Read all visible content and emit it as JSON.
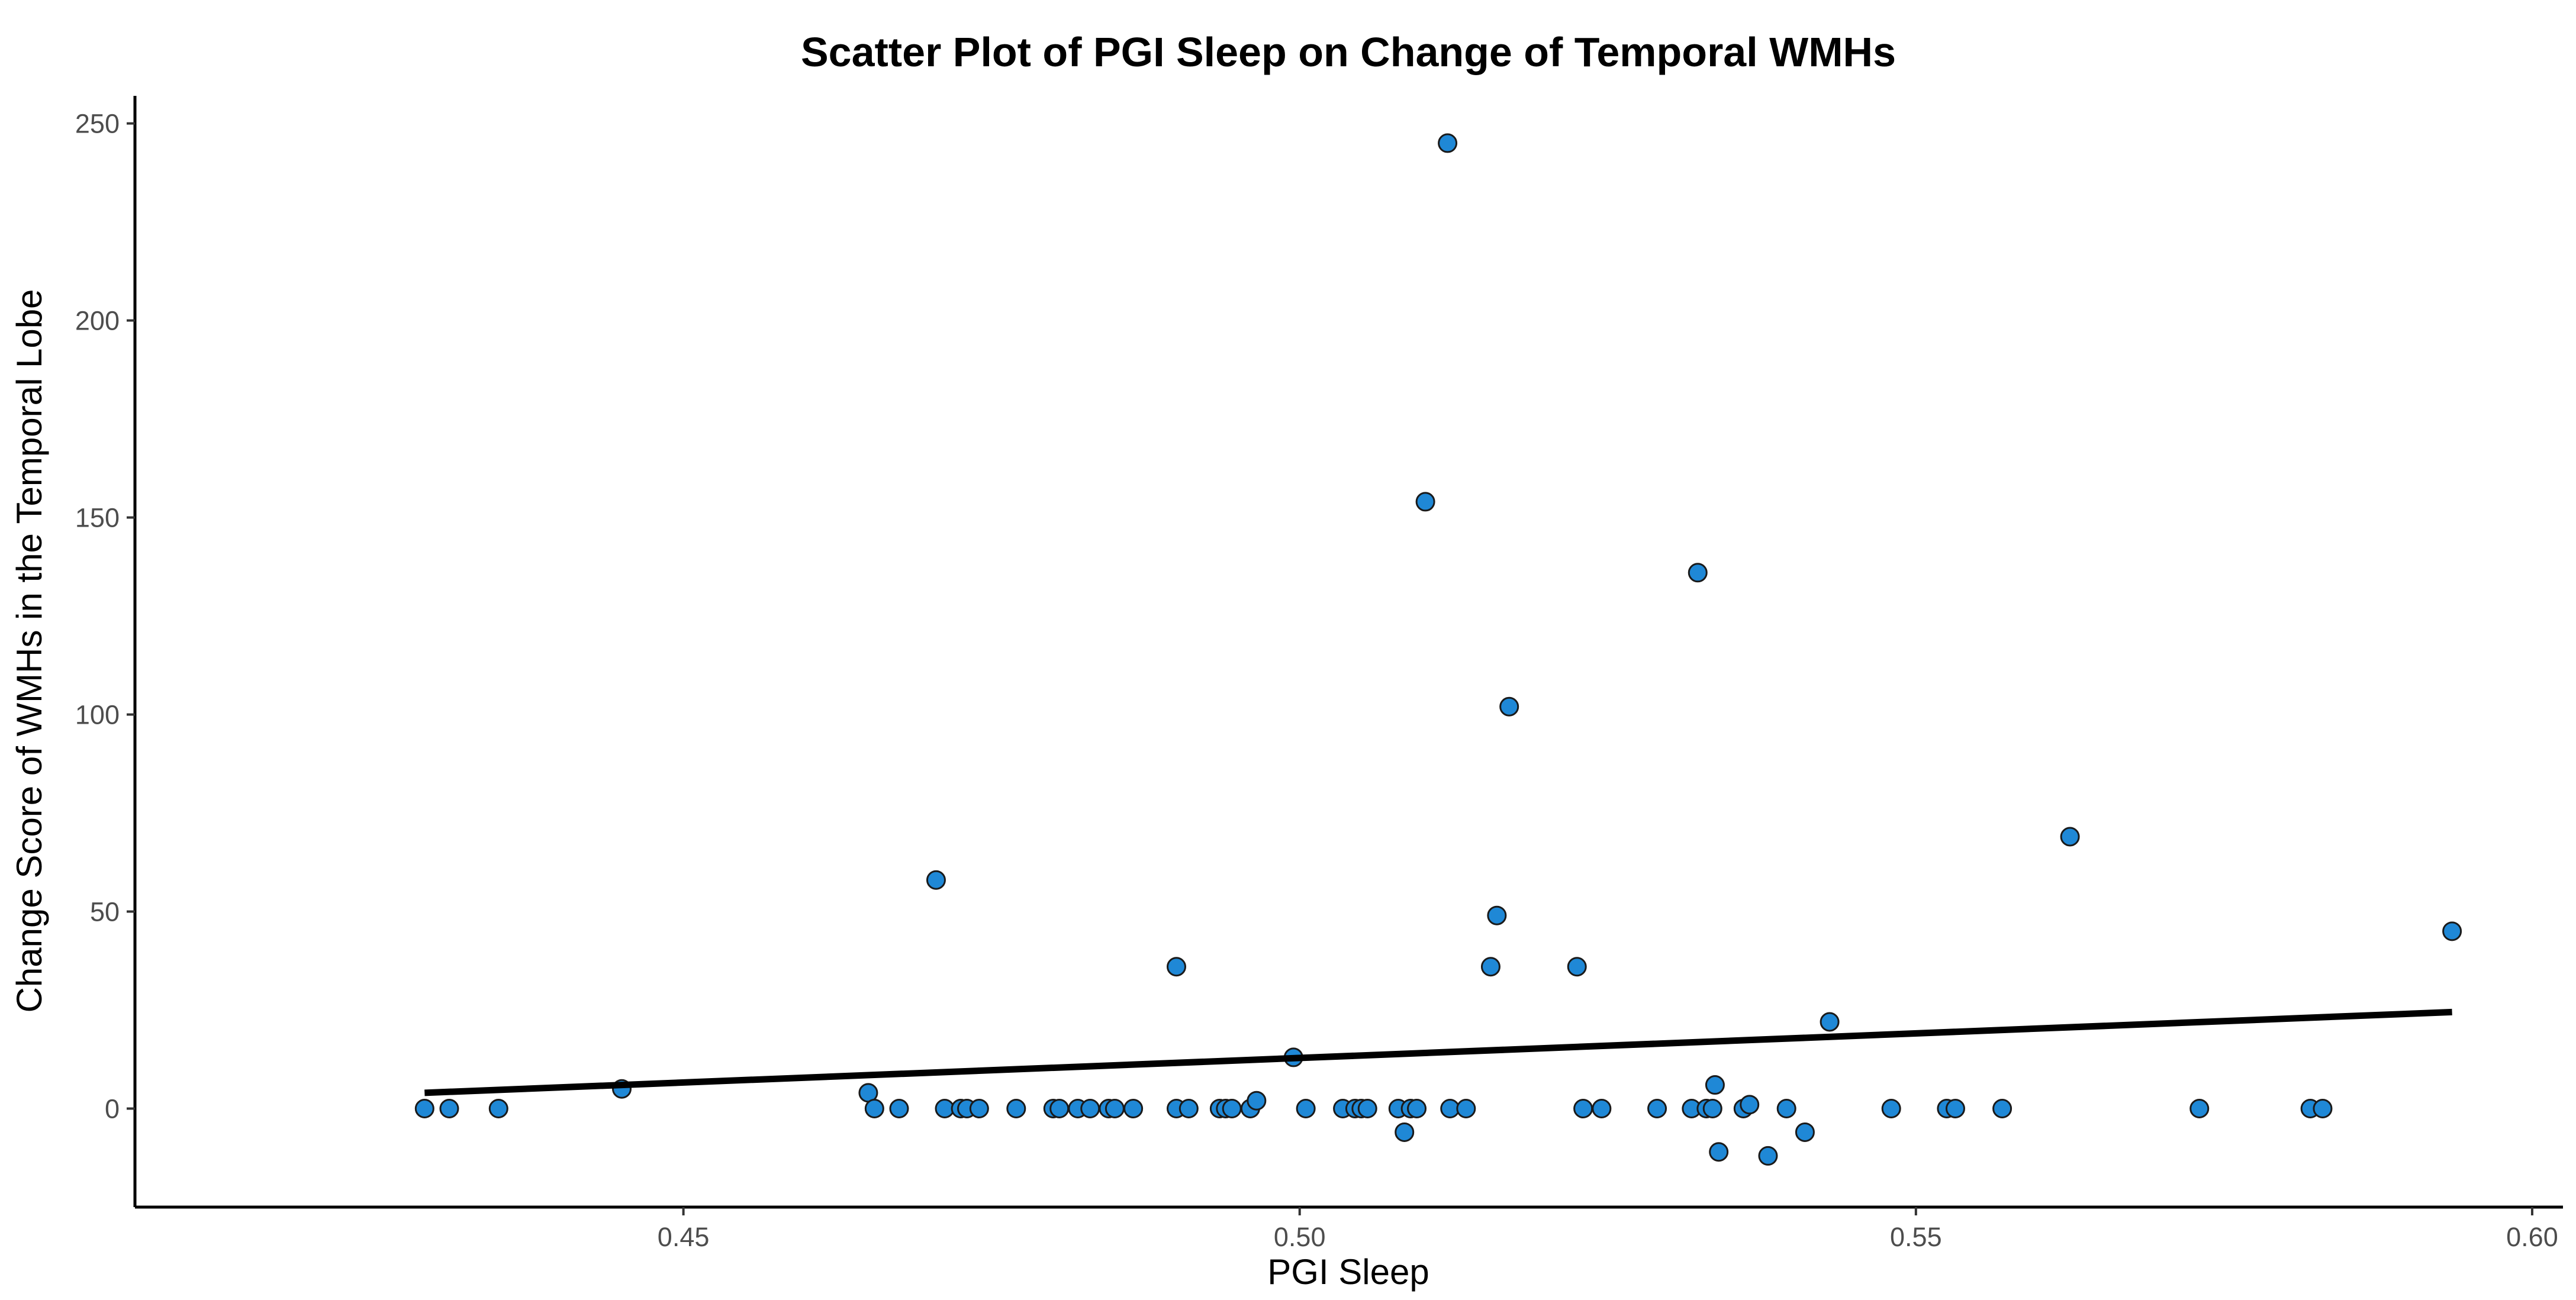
{
  "chart_data": {
    "type": "scatter",
    "title": "Scatter Plot of PGI Sleep on Change of Temporal WMHs",
    "xlabel": "PGI Sleep",
    "ylabel": "Change Score of WMHs in the Temporal Lobe",
    "xlim": [
      0.4055,
      0.6025
    ],
    "ylim": [
      -25,
      257
    ],
    "x_ticks": [
      0.45,
      0.5,
      0.55,
      0.6
    ],
    "x_tick_labels": [
      "0.45",
      "0.50",
      "0.55",
      "0.60"
    ],
    "y_ticks": [
      0,
      50,
      100,
      150,
      200,
      250
    ],
    "y_tick_labels": [
      "0",
      "50",
      "100",
      "150",
      "200",
      "250"
    ],
    "grid": false,
    "legend": "none",
    "point_color": "#1f88d6",
    "line_color": "#000000",
    "trend_line": {
      "x": [
        0.429,
        0.5935
      ],
      "y": [
        4,
        24.5
      ]
    },
    "points": [
      {
        "x": 0.429,
        "y": 0
      },
      {
        "x": 0.431,
        "y": 0
      },
      {
        "x": 0.435,
        "y": 0
      },
      {
        "x": 0.445,
        "y": 5
      },
      {
        "x": 0.465,
        "y": 4
      },
      {
        "x": 0.4655,
        "y": 0
      },
      {
        "x": 0.4675,
        "y": 0
      },
      {
        "x": 0.4705,
        "y": 58
      },
      {
        "x": 0.4712,
        "y": 0
      },
      {
        "x": 0.4725,
        "y": 0
      },
      {
        "x": 0.473,
        "y": 0
      },
      {
        "x": 0.474,
        "y": 0
      },
      {
        "x": 0.477,
        "y": 0
      },
      {
        "x": 0.48,
        "y": 0
      },
      {
        "x": 0.4805,
        "y": 0
      },
      {
        "x": 0.482,
        "y": 0
      },
      {
        "x": 0.483,
        "y": 0
      },
      {
        "x": 0.4845,
        "y": 0
      },
      {
        "x": 0.485,
        "y": 0
      },
      {
        "x": 0.4865,
        "y": 0
      },
      {
        "x": 0.49,
        "y": 36
      },
      {
        "x": 0.49,
        "y": 0
      },
      {
        "x": 0.491,
        "y": 0
      },
      {
        "x": 0.4935,
        "y": 0
      },
      {
        "x": 0.494,
        "y": 0
      },
      {
        "x": 0.4945,
        "y": 0
      },
      {
        "x": 0.496,
        "y": 0
      },
      {
        "x": 0.4965,
        "y": 2
      },
      {
        "x": 0.4995,
        "y": 13
      },
      {
        "x": 0.5005,
        "y": 0
      },
      {
        "x": 0.5035,
        "y": 0
      },
      {
        "x": 0.5045,
        "y": 0
      },
      {
        "x": 0.505,
        "y": 0
      },
      {
        "x": 0.5055,
        "y": 0
      },
      {
        "x": 0.508,
        "y": 0
      },
      {
        "x": 0.5085,
        "y": -6
      },
      {
        "x": 0.509,
        "y": 0
      },
      {
        "x": 0.5095,
        "y": 0
      },
      {
        "x": 0.5102,
        "y": 154
      },
      {
        "x": 0.512,
        "y": 245
      },
      {
        "x": 0.5122,
        "y": 0
      },
      {
        "x": 0.5135,
        "y": 0
      },
      {
        "x": 0.5155,
        "y": 36
      },
      {
        "x": 0.516,
        "y": 49
      },
      {
        "x": 0.517,
        "y": 102
      },
      {
        "x": 0.5225,
        "y": 36
      },
      {
        "x": 0.523,
        "y": 0
      },
      {
        "x": 0.5245,
        "y": 0
      },
      {
        "x": 0.529,
        "y": 0
      },
      {
        "x": 0.5318,
        "y": 0
      },
      {
        "x": 0.5323,
        "y": 136
      },
      {
        "x": 0.533,
        "y": 0
      },
      {
        "x": 0.5335,
        "y": 0
      },
      {
        "x": 0.5337,
        "y": 6
      },
      {
        "x": 0.534,
        "y": -11
      },
      {
        "x": 0.536,
        "y": 0
      },
      {
        "x": 0.5365,
        "y": 1
      },
      {
        "x": 0.538,
        "y": -12
      },
      {
        "x": 0.5395,
        "y": 0
      },
      {
        "x": 0.541,
        "y": -6
      },
      {
        "x": 0.543,
        "y": 22
      },
      {
        "x": 0.548,
        "y": 0
      },
      {
        "x": 0.5525,
        "y": 0
      },
      {
        "x": 0.5532,
        "y": 0
      },
      {
        "x": 0.557,
        "y": 0
      },
      {
        "x": 0.5625,
        "y": 69
      },
      {
        "x": 0.573,
        "y": 0
      },
      {
        "x": 0.582,
        "y": 0
      },
      {
        "x": 0.583,
        "y": 0
      },
      {
        "x": 0.5935,
        "y": 45
      }
    ]
  }
}
